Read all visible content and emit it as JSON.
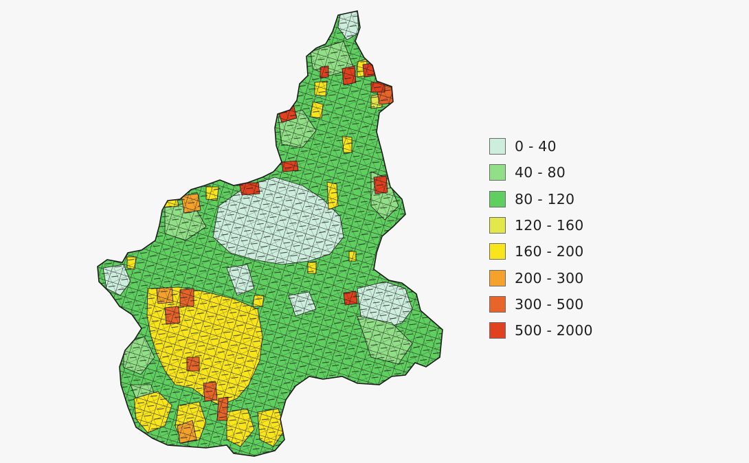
{
  "map": {
    "region": "Piemonte",
    "legend": [
      {
        "label": "0 - 40",
        "color": "#cdeedd"
      },
      {
        "label": "40 - 80",
        "color": "#91df86"
      },
      {
        "label": "80 - 120",
        "color": "#5fcf60"
      },
      {
        "label": "120 - 160",
        "color": "#e3e84a"
      },
      {
        "label": "160 - 200",
        "color": "#f8e51c"
      },
      {
        "label": "200 - 300",
        "color": "#f5a22c"
      },
      {
        "label": "300 - 500",
        "color": "#e8652a"
      },
      {
        "label": "500 - 2000",
        "color": "#e0411f"
      }
    ],
    "border_color": "#1a1a1a"
  }
}
